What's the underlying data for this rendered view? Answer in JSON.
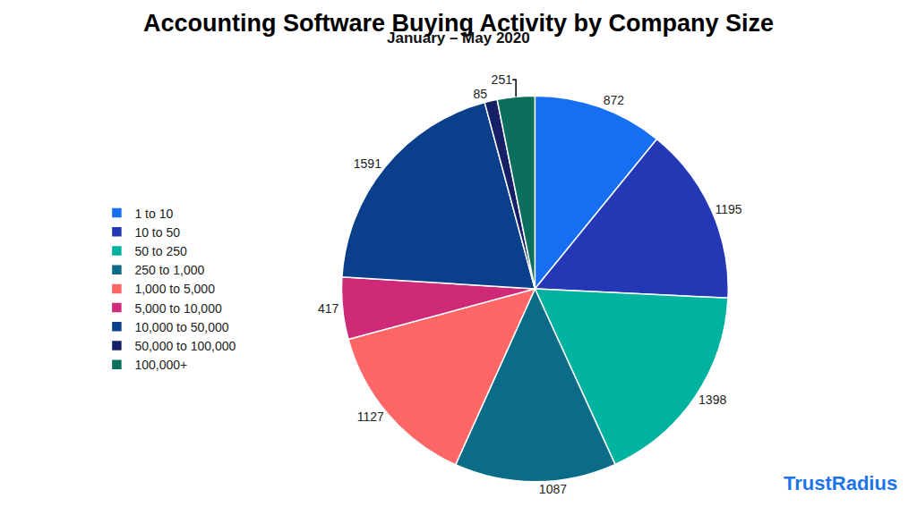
{
  "chart_data": {
    "type": "pie",
    "title": "Accounting Software Buying Activity by Company Size",
    "subtitle": "January – May 2020",
    "categories": [
      "1 to 10",
      "10 to 50",
      "50 to 250",
      "250 to 1,000",
      "1,000 to 5,000",
      "5,000 to 10,000",
      "10,000 to 50,000",
      "50,000 to 100,000",
      "100,000+"
    ],
    "values": [
      872,
      1195,
      1398,
      1087,
      1127,
      417,
      1591,
      85,
      251
    ],
    "colors": [
      "#166ef2",
      "#2438b5",
      "#00b3a1",
      "#0b6c88",
      "#ff6666",
      "#cf2a78",
      "#0a3f8c",
      "#152066",
      "#0c6f5e"
    ],
    "data_labels": true,
    "legend": "left",
    "annotations": [
      "TrustRadius"
    ]
  }
}
